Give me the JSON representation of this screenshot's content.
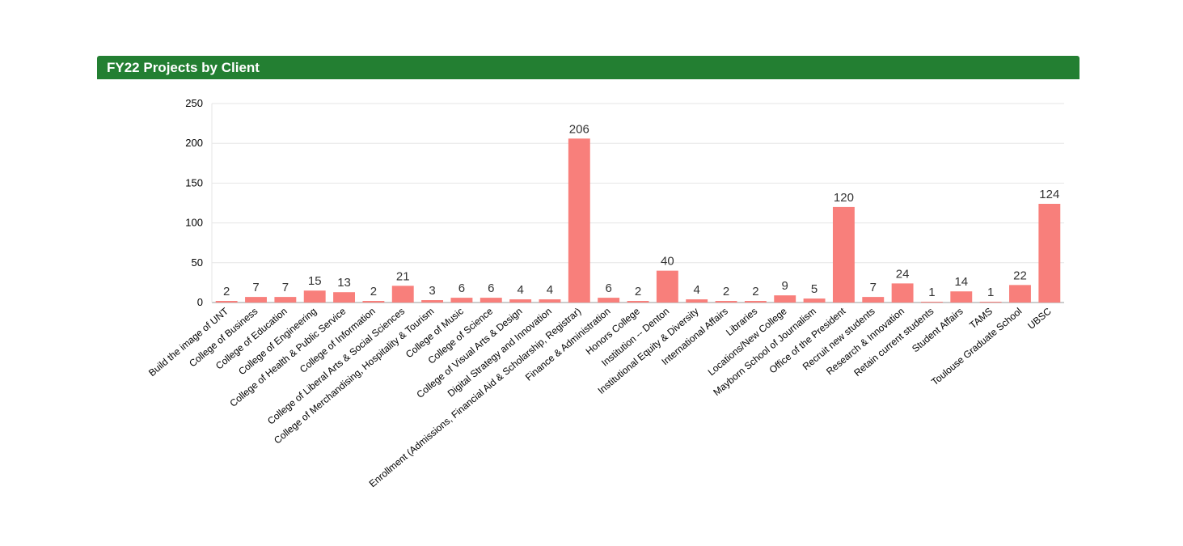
{
  "panel": {
    "title": "FY22 Projects by Client"
  },
  "colors": {
    "header_bg": "#237f32",
    "bar_fill": "#f87f7b",
    "gridline": "#e6e6e6",
    "axis_line": "#999999",
    "label_text": "#333333"
  },
  "chart_data": {
    "type": "bar",
    "title": "",
    "xlabel": "",
    "ylabel": "",
    "ylim": [
      0,
      250
    ],
    "yticks": [
      0,
      50,
      100,
      150,
      200,
      250
    ],
    "grid": true,
    "legend": "none",
    "categories": [
      "Build the image of UNT",
      "College of Business",
      "College of Education",
      "College of Engineering",
      "College of Health & Public Service",
      "College of Information",
      "College of Liberal Arts & Social Sciences",
      "College of Merchandising, Hospitality & Tourism",
      "College of Music",
      "College of Science",
      "College of Visual Arts & Design",
      "Digital Strategy and Innovation",
      "Enrollment (Admissions, Financial Aid & Scholarship, Registrar)",
      "Finance & Administration",
      "Honors College",
      "Institution -- Denton",
      "Institutional Equity & Diversity",
      "International Affairs",
      "Libraries",
      "Locations/New College",
      "Mayborn School of Journalism",
      "Office of the President",
      "Recruit new students",
      "Research & Innovation",
      "Retain current students",
      "Student Affairs",
      "TAMS",
      "Toulouse Graduate School",
      "UBSC"
    ],
    "values": [
      2,
      7,
      7,
      15,
      13,
      2,
      21,
      3,
      6,
      6,
      4,
      4,
      206,
      6,
      2,
      40,
      4,
      2,
      2,
      9,
      5,
      120,
      7,
      24,
      1,
      14,
      1,
      22,
      124
    ]
  }
}
